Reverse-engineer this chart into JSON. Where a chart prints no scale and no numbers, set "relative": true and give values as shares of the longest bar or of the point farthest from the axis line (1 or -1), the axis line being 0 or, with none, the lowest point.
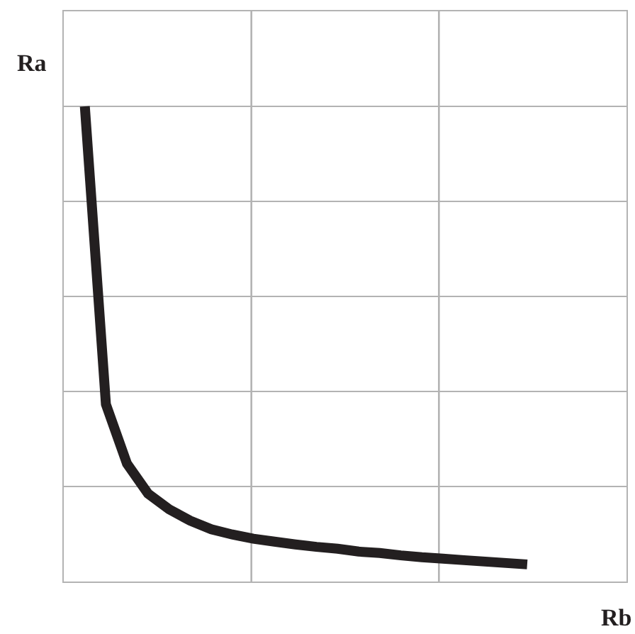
{
  "chart_data": {
    "type": "line",
    "xlabel": "Rb",
    "ylabel": "Ra",
    "relative": true,
    "grid": true,
    "marker": "none",
    "line_style": "solid",
    "categories": [
      null,
      null,
      null,
      null,
      null,
      null,
      null,
      null,
      null,
      null,
      null,
      null,
      null,
      null,
      null,
      null,
      null,
      null,
      null,
      null,
      null,
      null
    ],
    "series": [
      {
        "color": "#231f20",
        "values": [
          1,
          0.373,
          0.248,
          0.185,
          0.152,
          0.128,
          0.11,
          0.099,
          0.09,
          0.084,
          0.078,
          0.073,
          0.069,
          0.063,
          0.06,
          0.055,
          0.051,
          0.048,
          0.045,
          0.042,
          0.039,
          0.036
        ]
      }
    ]
  }
}
